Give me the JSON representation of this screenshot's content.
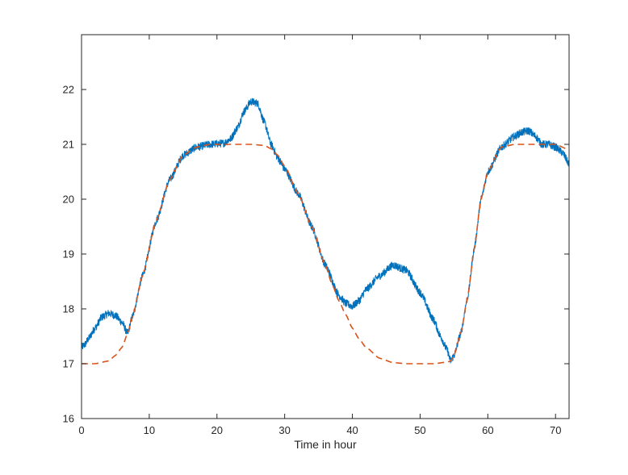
{
  "chart_data": {
    "type": "line",
    "title": "",
    "xlabel": "Time in hour",
    "ylabel": "",
    "xlim": [
      0,
      72
    ],
    "ylim": [
      16,
      23
    ],
    "xticks": [
      0,
      10,
      20,
      30,
      40,
      50,
      60,
      70
    ],
    "yticks": [
      16,
      17,
      18,
      19,
      20,
      21,
      22
    ],
    "grid": false,
    "box": true,
    "series": [
      {
        "style": "solid-noisy",
        "color": "#0072BD",
        "noise_amplitude": 0.07,
        "x": [
          0,
          0.5,
          1,
          2,
          3,
          4,
          5,
          6,
          6.8,
          7.5,
          9,
          11,
          13,
          15,
          17,
          19,
          21,
          22,
          23,
          24,
          25,
          26,
          27,
          28,
          29,
          30,
          32,
          34,
          36,
          38,
          39,
          40,
          41,
          42,
          44,
          46,
          48,
          50,
          52,
          53,
          54,
          54.5,
          55,
          56,
          57,
          58,
          59,
          60,
          62,
          64,
          65,
          66,
          67,
          68,
          69,
          70,
          71,
          72
        ],
        "y": [
          17.3,
          17.35,
          17.45,
          17.65,
          17.85,
          17.92,
          17.88,
          17.75,
          17.55,
          17.85,
          18.6,
          19.6,
          20.35,
          20.8,
          20.95,
          21.0,
          21.02,
          21.1,
          21.3,
          21.6,
          21.78,
          21.75,
          21.4,
          21.0,
          20.75,
          20.55,
          20.1,
          19.5,
          18.8,
          18.25,
          18.1,
          18.05,
          18.15,
          18.35,
          18.6,
          18.8,
          18.7,
          18.3,
          17.8,
          17.5,
          17.25,
          17.05,
          17.15,
          17.55,
          18.2,
          19.1,
          20.0,
          20.5,
          20.95,
          21.15,
          21.22,
          21.25,
          21.15,
          21.0,
          21.0,
          20.95,
          20.85,
          20.65
        ]
      },
      {
        "style": "dashed",
        "color": "#D95319",
        "x": [
          0,
          2,
          4,
          5,
          6,
          6.8,
          7.5,
          9,
          11,
          13,
          15,
          17,
          19,
          21,
          23,
          25,
          27,
          28,
          29,
          30,
          32,
          34,
          36,
          37,
          38,
          39,
          40,
          41,
          42,
          44,
          46,
          48,
          50,
          52,
          54,
          54.5,
          55,
          56,
          57,
          58,
          59,
          60,
          62,
          64,
          66,
          68,
          70,
          72
        ],
        "y": [
          17.0,
          17.0,
          17.05,
          17.15,
          17.3,
          17.55,
          17.85,
          18.6,
          19.6,
          20.35,
          20.8,
          20.95,
          21.0,
          21.0,
          21.0,
          21.0,
          20.98,
          20.92,
          20.8,
          20.6,
          20.1,
          19.5,
          18.8,
          18.45,
          18.15,
          17.9,
          17.65,
          17.45,
          17.3,
          17.1,
          17.02,
          17.0,
          17.0,
          17.0,
          17.03,
          17.05,
          17.15,
          17.55,
          18.2,
          19.1,
          20.0,
          20.5,
          20.95,
          21.0,
          21.0,
          21.0,
          21.0,
          20.9
        ]
      }
    ]
  }
}
